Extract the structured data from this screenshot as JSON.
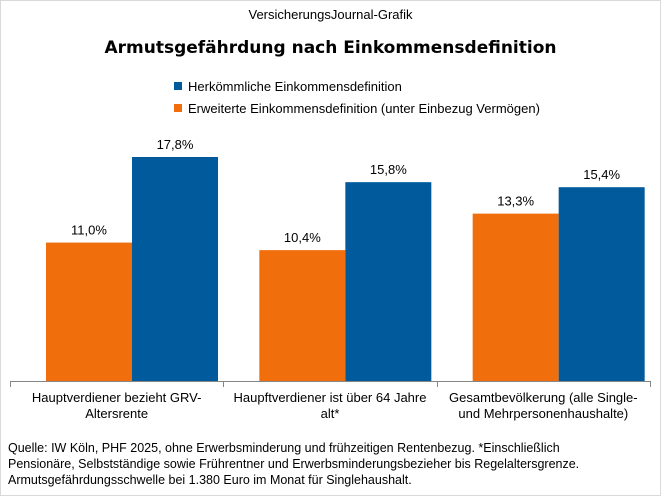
{
  "header": {
    "source": "VersicherungsJournal-Grafik"
  },
  "colors": {
    "series_blue": "#005a9c",
    "series_orange": "#f06e0c"
  },
  "chart_data": {
    "type": "bar",
    "title": "Armutsgefährdung  nach Einkommensdefinition",
    "categories": [
      [
        "Hauptverdiener bezieht GRV-",
        "Altersrente"
      ],
      [
        "Haupftverdiener ist über 64 Jahre",
        "alt*"
      ],
      [
        "Gesamtbevölkerung (alle Single-",
        "und Mehrpersonenhaushalte)"
      ]
    ],
    "series": [
      {
        "name": "Erweiterte Einkommensdefinition (unter Einbezug Vermögen)",
        "color": "#f06e0c",
        "values": [
          11.0,
          10.4,
          13.3
        ],
        "labels": [
          "11,0%",
          "10,4%",
          "13,3%"
        ]
      },
      {
        "name": "Herkömmliche Einkommensdefinition",
        "color": "#005a9c",
        "values": [
          17.8,
          15.8,
          15.4
        ],
        "labels": [
          "17,8%",
          "15,8%",
          "15,4%"
        ]
      }
    ],
    "legend": [
      {
        "label": "Herkömmliche Einkommensdefinition",
        "color": "#005a9c"
      },
      {
        "label": "Erweiterte Einkommensdefinition (unter Einbezug Vermögen)",
        "color": "#f06e0c"
      }
    ],
    "legend_position": "top",
    "ylim": [
      0,
      20
    ],
    "grid": false
  },
  "footnote": [
    "Quelle: IW Köln, PHF 2025, ohne Erwerbsminderung und frühzeitigen Rentenbezug. *Einschließlich",
    "Pensionäre, Selbstständige sowie Frührentner und Erwerbsminderungsbezieher bis Regelaltersgrenze.",
    "Armutsgefährdungsschwelle  bei 1.380 Euro im Monat für Singlehaushalt."
  ]
}
